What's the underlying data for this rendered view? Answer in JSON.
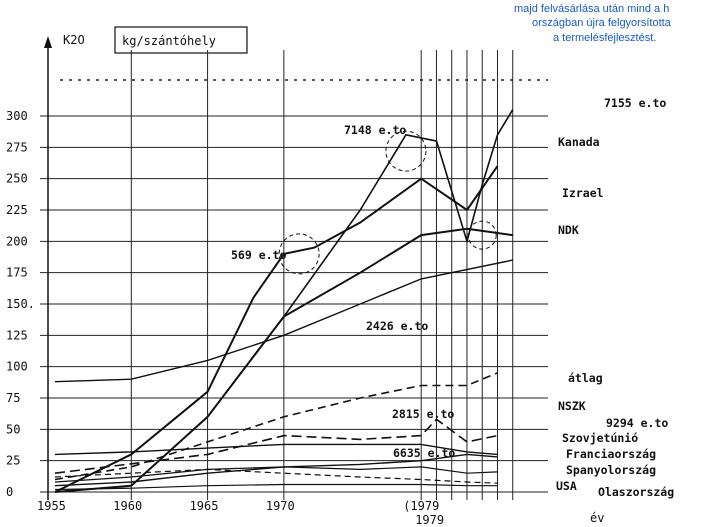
{
  "chart_data": {
    "type": "line",
    "ylabel": "K2O",
    "yunit": "kg/szántóhely",
    "xlabel": "év",
    "x_ticks": [
      "1955",
      "1960",
      "1965",
      "1970",
      "(1979",
      "1979"
    ],
    "y_ticks": [
      "300",
      "275",
      "250",
      "225",
      "200",
      "175",
      "150.",
      "125",
      "100",
      "75",
      "50",
      "25",
      "0"
    ],
    "ylim": [
      0,
      300
    ],
    "xlim": [
      1955,
      1986
    ],
    "grid": true,
    "note": [
      "majd felvásárlása után mind a h",
      "országban újra felgyorsította",
      "a termelésfejlesztést."
    ],
    "series": [
      {
        "name": "Kanada",
        "points": [
          [
            1965,
            60
          ],
          [
            1970,
            140
          ],
          [
            1975,
            225
          ],
          [
            1978,
            285
          ],
          [
            1980,
            280
          ],
          [
            1982,
            200
          ],
          [
            1983,
            245
          ],
          [
            1984,
            285
          ],
          [
            1985,
            305
          ]
        ]
      },
      {
        "name": "Izrael",
        "points": [
          [
            1955,
            0
          ],
          [
            1960,
            30
          ],
          [
            1965,
            80
          ],
          [
            1968,
            155
          ],
          [
            1970,
            190
          ],
          [
            1972,
            195
          ],
          [
            1975,
            215
          ],
          [
            1979,
            250
          ],
          [
            1982,
            225
          ],
          [
            1984,
            260
          ]
        ]
      },
      {
        "name": "NDK",
        "points": [
          [
            1955,
            0
          ],
          [
            1960,
            5
          ],
          [
            1965,
            60
          ],
          [
            1970,
            140
          ],
          [
            1975,
            175
          ],
          [
            1979,
            205
          ],
          [
            1982,
            210
          ],
          [
            1985,
            205
          ]
        ]
      },
      {
        "name": "",
        "points": [
          [
            1955,
            88
          ],
          [
            1960,
            90
          ],
          [
            1965,
            105
          ],
          [
            1970,
            125
          ],
          [
            1975,
            150
          ],
          [
            1979,
            170
          ],
          [
            1985,
            185
          ]
        ]
      },
      {
        "name": "átlag",
        "points": [
          [
            1955,
            10
          ],
          [
            1960,
            20
          ],
          [
            1965,
            40
          ],
          [
            1970,
            60
          ],
          [
            1975,
            75
          ],
          [
            1979,
            85
          ],
          [
            1982,
            85
          ],
          [
            1984,
            95
          ]
        ]
      },
      {
        "name": "NSZK",
        "points": [
          [
            1955,
            15
          ],
          [
            1965,
            30
          ],
          [
            1970,
            45
          ],
          [
            1975,
            42
          ],
          [
            1979,
            45
          ],
          [
            1980,
            58
          ],
          [
            1982,
            40
          ],
          [
            1984,
            45
          ]
        ]
      },
      {
        "name": "Szovjetúnió",
        "points": [
          [
            1955,
            5
          ],
          [
            1960,
            8
          ],
          [
            1965,
            15
          ],
          [
            1970,
            20
          ],
          [
            1975,
            22
          ],
          [
            1979,
            25
          ],
          [
            1982,
            30
          ],
          [
            1984,
            28
          ]
        ]
      },
      {
        "name": "Franciaország",
        "points": [
          [
            1955,
            30
          ],
          [
            1960,
            32
          ],
          [
            1965,
            35
          ],
          [
            1970,
            38
          ],
          [
            1975,
            38
          ],
          [
            1979,
            38
          ],
          [
            1982,
            32
          ],
          [
            1984,
            30
          ]
        ]
      },
      {
        "name": "Spanyolország",
        "points": [
          [
            1955,
            8
          ],
          [
            1960,
            12
          ],
          [
            1965,
            18
          ],
          [
            1970,
            20
          ],
          [
            1975,
            18
          ],
          [
            1979,
            20
          ],
          [
            1982,
            15
          ],
          [
            1984,
            16
          ]
        ]
      },
      {
        "name": "USA",
        "points": [
          [
            1955,
            12
          ],
          [
            1960,
            15
          ],
          [
            1965,
            18
          ],
          [
            1970,
            15
          ],
          [
            1975,
            12
          ],
          [
            1979,
            10
          ],
          [
            1982,
            8
          ],
          [
            1984,
            7
          ]
        ]
      },
      {
        "name": "Olaszország",
        "points": [
          [
            1955,
            2
          ],
          [
            1960,
            3
          ],
          [
            1965,
            5
          ],
          [
            1970,
            6
          ],
          [
            1975,
            6
          ],
          [
            1979,
            6
          ],
          [
            1982,
            5
          ],
          [
            1984,
            5
          ]
        ]
      }
    ],
    "annotations": [
      "7155 e.to",
      "7148 e.to",
      "569 e.to",
      "2426 e.to",
      "2815 e.to",
      "6635 e.to",
      "9294 e.to"
    ]
  }
}
